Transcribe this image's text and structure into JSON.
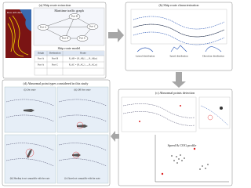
{
  "panels": {
    "a": {
      "title": "(a) Ship route extraction",
      "raw_label": "Raw AIS data",
      "graph_title": "Maritime traffic graph",
      "nodes": [
        "Port A",
        "Port B",
        "Port C",
        "Port D",
        "Port E"
      ],
      "model_title": "Ship route model",
      "table": {
        "header": [
          "Origin",
          "Destination",
          "Route"
        ],
        "rows": [
          [
            "Port A",
            "Port B",
            "R_AB = {R_AB,1, ..., R_AB,n}"
          ],
          [
            "Port A",
            "Port C",
            "R_AC = {R_AC,1, ..., R_AC,n}"
          ]
        ]
      }
    },
    "b": {
      "title": "(b) Ship route characterization",
      "labels": [
        "Lateral distribution",
        "Speed distribution",
        "Direction distribution"
      ]
    },
    "c": {
      "title": "(c) Abnormal points detection",
      "cluster_label": "Speed & COG profile"
    },
    "d": {
      "title": "(d) Abnormal point types considered in this study",
      "cases": [
        "(i) On route",
        "(ii) Off the route",
        "(iii) Heading is not compatible with the route",
        "(iv) Speed not compatible with the route"
      ]
    }
  }
}
